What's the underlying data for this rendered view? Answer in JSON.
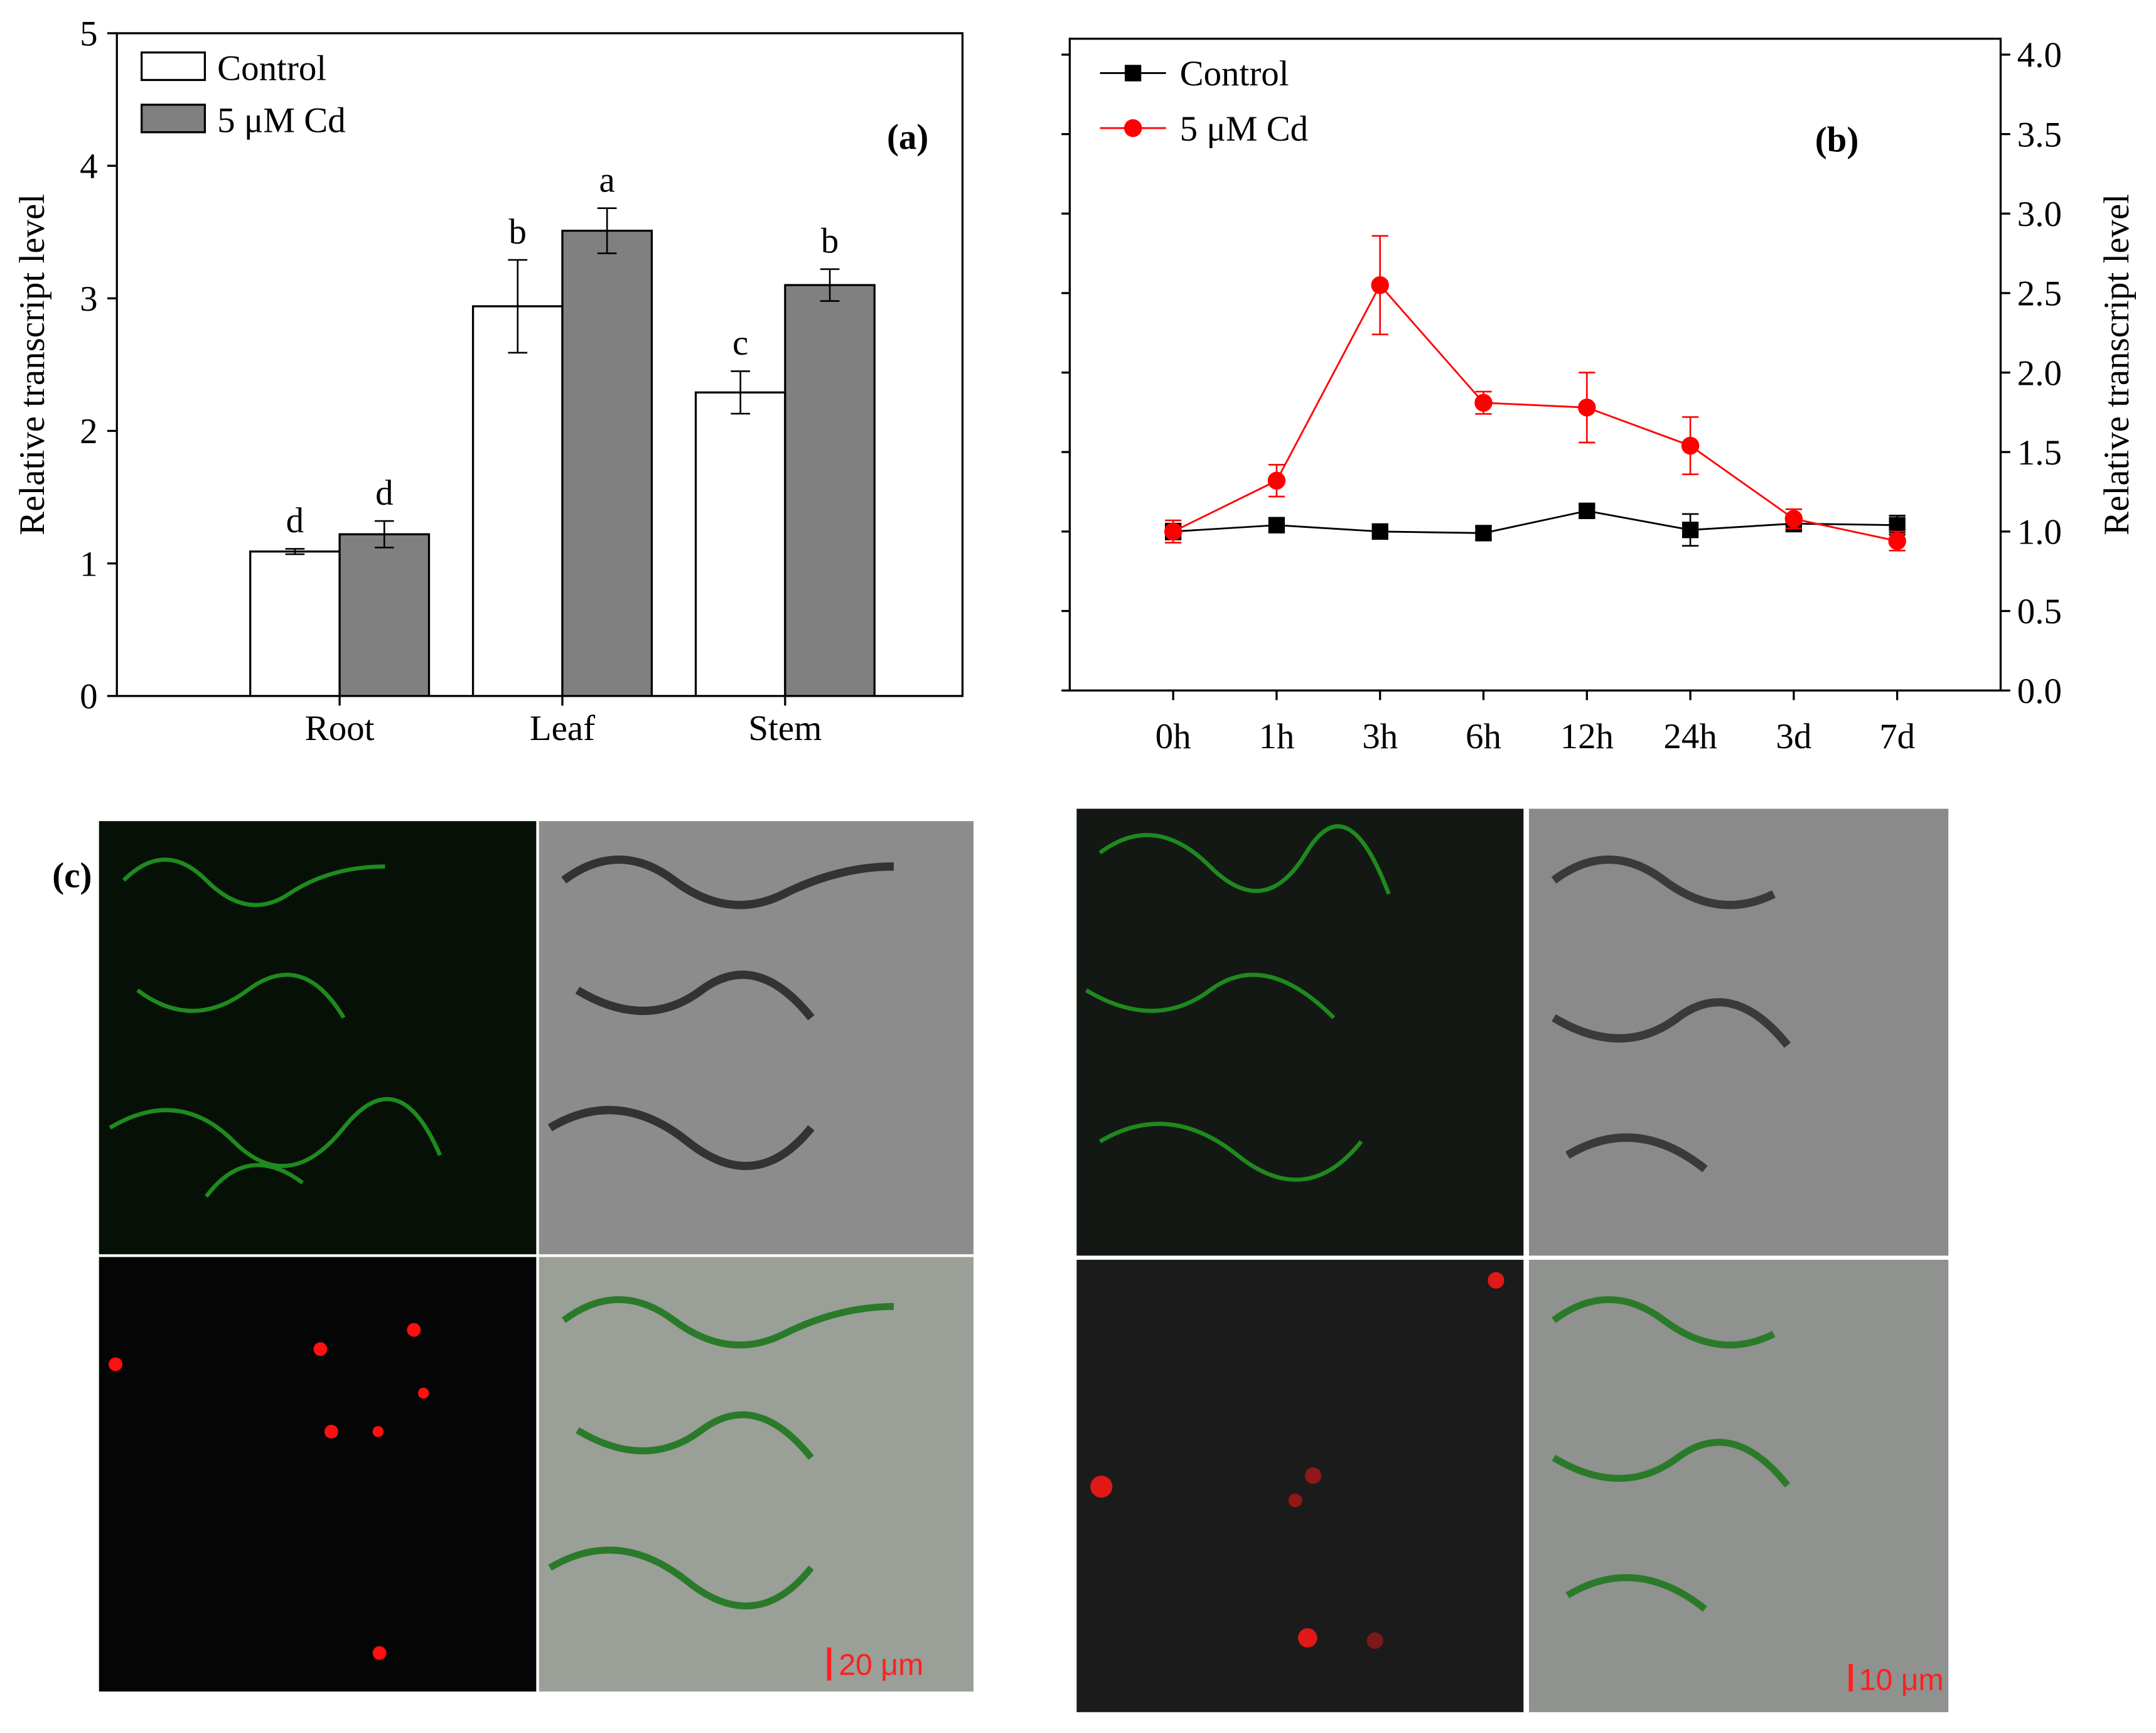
{
  "chart_data": [
    {
      "type": "bar",
      "panel_label": "(a)",
      "y_label": "Relative transcript level",
      "categories": [
        "Root",
        "Leaf",
        "Stem"
      ],
      "series": [
        {
          "name": "Control",
          "color": "#ffffff",
          "values": [
            1.09,
            2.94,
            2.29
          ],
          "errors": [
            0.02,
            0.35,
            0.16
          ],
          "labels": [
            "d",
            "b",
            "c"
          ]
        },
        {
          "name": "5 μM Cd",
          "color": "#808080",
          "values": [
            1.22,
            3.51,
            3.1
          ],
          "errors": [
            0.1,
            0.17,
            0.12
          ],
          "labels": [
            "d",
            "a",
            "b"
          ]
        }
      ],
      "ylim": [
        0,
        5
      ],
      "yticks": [
        0,
        1,
        2,
        3,
        4,
        5
      ]
    },
    {
      "type": "line",
      "panel_label": "(b)",
      "y_label": "Relative transcript level",
      "categories": [
        "0h",
        "1h",
        "3h",
        "6h",
        "12h",
        "24h",
        "3d",
        "7d"
      ],
      "series": [
        {
          "name": "Control",
          "color": "#000000",
          "marker": "square",
          "values": [
            1.0,
            1.04,
            1.0,
            0.99,
            1.13,
            1.01,
            1.05,
            1.04
          ],
          "errors": [
            0.05,
            0.04,
            0.02,
            0.04,
            0.04,
            0.1,
            0.05,
            0.06
          ]
        },
        {
          "name": "5 μM Cd",
          "color": "#ff0000",
          "marker": "circle",
          "values": [
            1.0,
            1.32,
            2.55,
            1.81,
            1.78,
            1.54,
            1.08,
            0.94
          ],
          "errors": [
            0.07,
            0.1,
            0.31,
            0.07,
            0.22,
            0.18,
            0.06,
            0.06
          ]
        }
      ],
      "ylim": [
        0,
        4.1
      ],
      "y_axis_side": "right",
      "yticks": [
        {
          "value": 0,
          "label": "0.0"
        },
        0.5,
        {
          "value": 1,
          "label": "1.0"
        },
        1.5,
        {
          "value": 2,
          "label": "2.0"
        },
        2.5,
        {
          "value": 3,
          "label": "3.0"
        },
        3.5,
        {
          "value": 4,
          "label": "4.0"
        }
      ]
    }
  ],
  "panel_c": {
    "label": "(c)",
    "scale_bars": [
      "20 μm",
      "10 μm"
    ]
  }
}
